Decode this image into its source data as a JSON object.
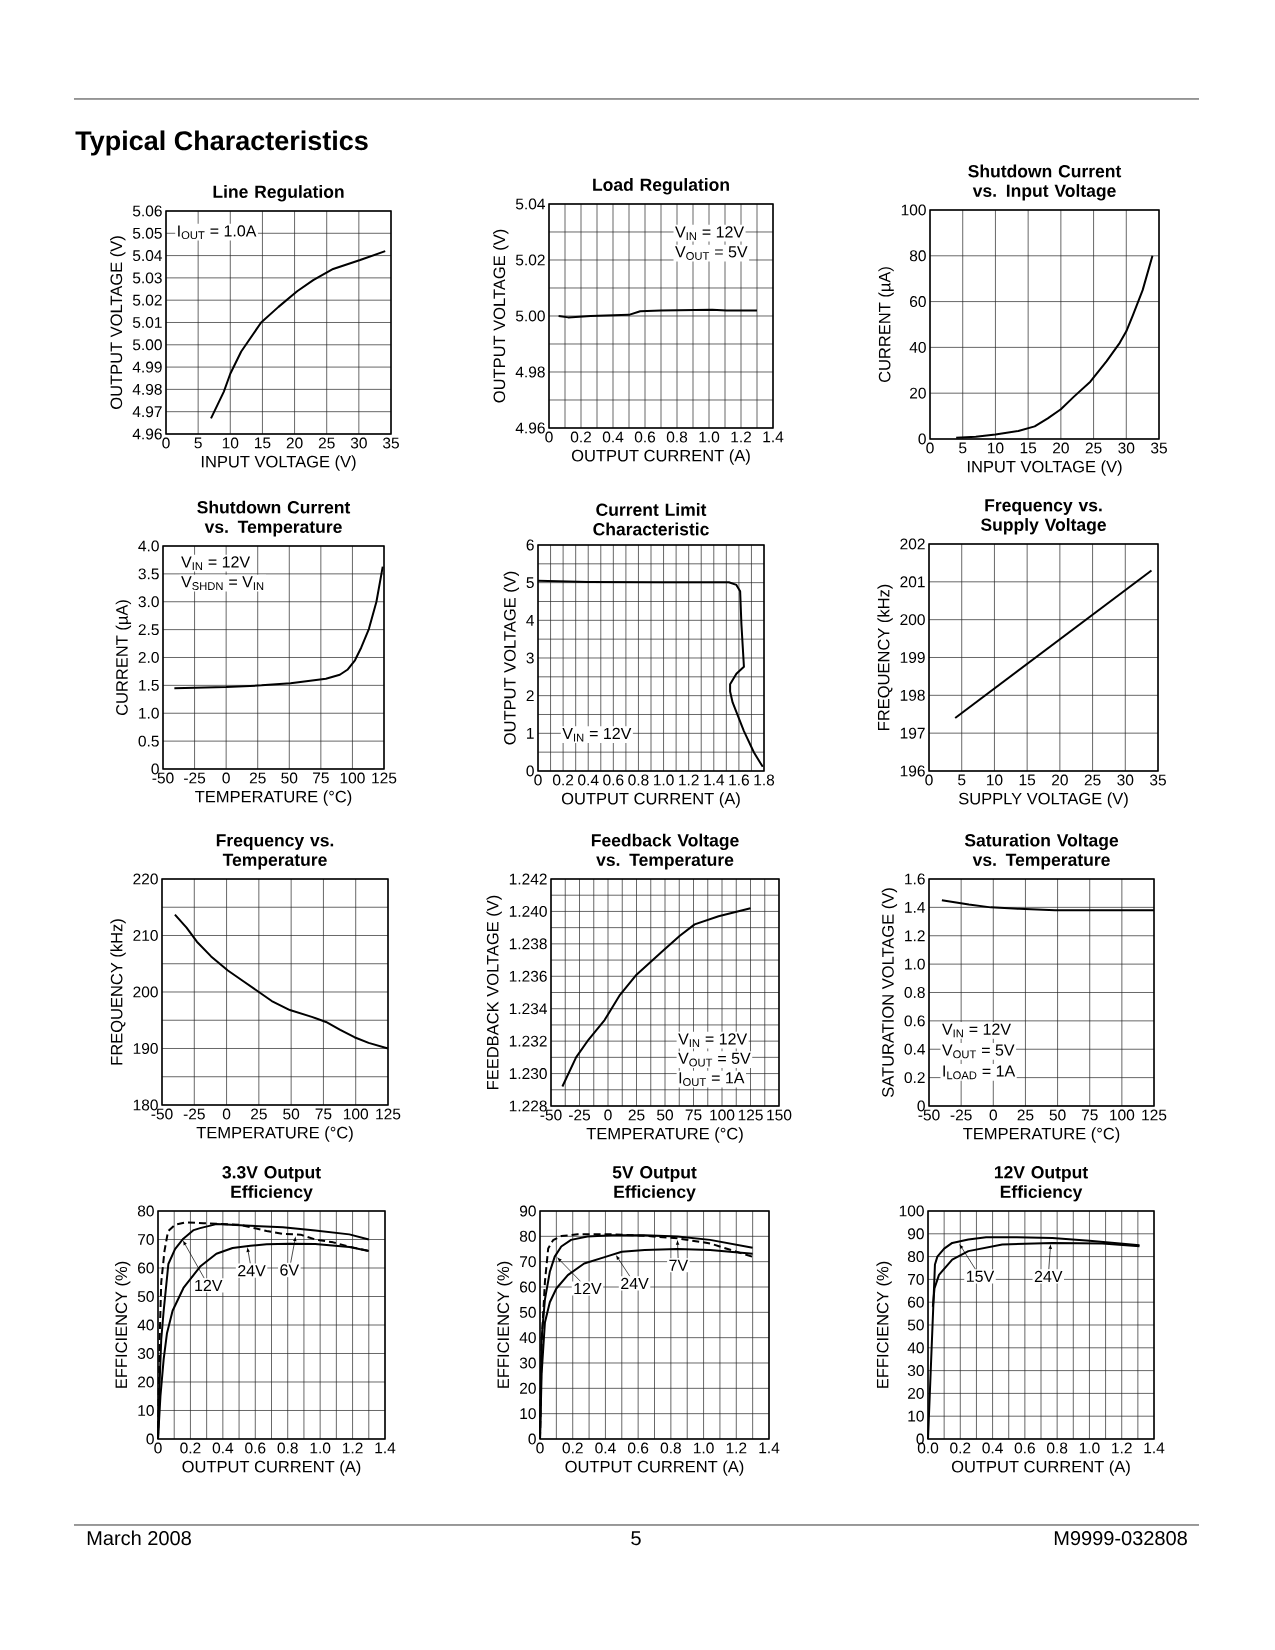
{
  "chart_data": [
    {
      "type": "other",
      "title": "Typical Characteristics",
      "annotations": [
        "March 2008",
        "5",
        "M9999-032808"
      ]
    },
    {
      "type": "line",
      "title": "Line Regulation",
      "xlabel": "INPUT VOLTAGE (V)",
      "ylabel": "OUTPUT VOLTAGE (V)",
      "xlim": [
        0,
        35
      ],
      "ylim": [
        4.96,
        5.06
      ],
      "xticks": [
        0,
        5,
        10,
        15,
        20,
        25,
        30,
        35
      ],
      "yticks": [
        4.96,
        4.97,
        4.98,
        4.99,
        {
          "value": 5,
          "label": "5.00"
        },
        5.01,
        5.02,
        5.03,
        5.04,
        5.05,
        5.06
      ],
      "grid": true,
      "annotations": [
        "I$_{OUT}$ = 1.0A"
      ],
      "series": [
        {
          "color": "#000000",
          "x": [
            7,
            9,
            10,
            11.7,
            14.8,
            17.5,
            20.4,
            22.9,
            26,
            30.2,
            34.1
          ],
          "values": [
            4.967,
            4.979,
            4.987,
            4.997,
            5.01,
            5.017,
            5.024,
            5.029,
            5.034,
            5.038,
            5.042
          ]
        }
      ]
    },
    {
      "type": "line",
      "title": "Load Regulation",
      "xlabel": "OUTPUT CURRENT (A)",
      "ylabel": "OUTPUT VOLTAGE (V)",
      "xlim": [
        0,
        1.4
      ],
      "ylim": [
        4.96,
        5.04
      ],
      "xticks": [
        0,
        {
          "value": 0.1,
          "label": null
        },
        0.2,
        {
          "value": 0.3,
          "label": null
        },
        0.4,
        {
          "value": 0.5,
          "label": null
        },
        0.6,
        {
          "value": 0.7,
          "label": null
        },
        0.8,
        {
          "value": 0.9,
          "label": null
        },
        {
          "value": 1,
          "label": "1.0"
        },
        {
          "value": 1.1,
          "label": null
        },
        1.2,
        {
          "value": 1.3,
          "label": null
        },
        1.4
      ],
      "yticks": [
        4.96,
        {
          "value": 4.97,
          "label": null
        },
        4.98,
        {
          "value": 4.99,
          "label": null
        },
        {
          "value": 5,
          "label": "5.00"
        },
        {
          "value": 5.01,
          "label": null
        },
        5.02,
        {
          "value": 5.03,
          "label": null
        },
        5.04
      ],
      "grid": true,
      "annotations": [
        "V$_{IN}$ = 12V",
        "V$_{OUT}$ = 5V"
      ],
      "series": [
        {
          "color": "#000000",
          "x": [
            0.06,
            0.12,
            0.26,
            0.5,
            0.57,
            0.7,
            1.02,
            1.11,
            1.3
          ],
          "values": [
            5.0,
            4.9995,
            5.0,
            5.0004,
            5.0017,
            5.002,
            5.0022,
            5.002,
            5.002
          ]
        }
      ]
    },
    {
      "type": "line",
      "title": "Shutdown Current vs. Input Voltage",
      "xlabel": "INPUT VOLTAGE (V)",
      "ylabel": "CURRENT (µA)",
      "xlim": [
        0,
        35
      ],
      "ylim": [
        0,
        100
      ],
      "xticks": [
        0,
        5,
        10,
        15,
        20,
        25,
        30,
        35
      ],
      "yticks": [
        0,
        20,
        40,
        60,
        80,
        100
      ],
      "grid": true,
      "series": [
        {
          "color": "#000000",
          "x": [
            4,
            7,
            10,
            13.5,
            16,
            18,
            20,
            22,
            24.5,
            27,
            29,
            30,
            31,
            32.5,
            34
          ],
          "values": [
            0.5,
            1,
            2,
            3.5,
            5.5,
            9,
            13,
            18.5,
            25,
            34,
            42,
            47,
            54,
            65,
            80
          ]
        }
      ]
    },
    {
      "type": "line",
      "title": "Shutdown Current vs. Temperature",
      "xlabel": "TEMPERATURE (°C)",
      "ylabel": "CURRENT (µA)",
      "xlim": [
        -50,
        125
      ],
      "ylim": [
        0,
        4
      ],
      "xticks": [
        -50,
        -25,
        0,
        25,
        50,
        75,
        100,
        125
      ],
      "yticks": [
        0,
        0.5,
        {
          "value": 1,
          "label": "1.0"
        },
        1.5,
        {
          "value": 2,
          "label": "2.0"
        },
        2.5,
        {
          "value": 3,
          "label": "3.0"
        },
        3.5,
        {
          "value": 4,
          "label": "4.0"
        }
      ],
      "grid": true,
      "annotations": [
        "V$_{IN}$ = 12V",
        "V$_{SHDN}$ = V$_{IN}$"
      ],
      "series": [
        {
          "color": "#000000",
          "x": [
            -41,
            0,
            28,
            51,
            79,
            90,
            96,
            102,
            107,
            113,
            119,
            124
          ],
          "values": [
            1.45,
            1.47,
            1.5,
            1.54,
            1.62,
            1.69,
            1.78,
            1.95,
            2.18,
            2.51,
            3.0,
            3.63
          ]
        }
      ]
    },
    {
      "type": "line",
      "title": "Current Limit Characteristic",
      "xlabel": "OUTPUT CURRENT (A)",
      "ylabel": "OUTPUT VOLTAGE (V)",
      "xlim": [
        0,
        1.8
      ],
      "ylim": [
        0,
        6
      ],
      "xticks": [
        0,
        {
          "value": 0.1,
          "label": null
        },
        0.2,
        {
          "value": 0.3,
          "label": null
        },
        0.4,
        {
          "value": 0.5,
          "label": null
        },
        0.6,
        {
          "value": 0.7,
          "label": null
        },
        0.8,
        {
          "value": 0.9,
          "label": null
        },
        {
          "value": 1,
          "label": "1.0"
        },
        {
          "value": 1.1,
          "label": null
        },
        1.2,
        {
          "value": 1.3,
          "label": null
        },
        1.4,
        {
          "value": 1.5,
          "label": null
        },
        1.6,
        {
          "value": 1.7,
          "label": null
        },
        1.8
      ],
      "yticks": [
        0,
        {
          "value": 0.5,
          "label": null
        },
        1,
        {
          "value": 1.5,
          "label": null
        },
        2,
        {
          "value": 2.5,
          "label": null
        },
        3,
        {
          "value": 3.5,
          "label": null
        },
        4,
        {
          "value": 4.5,
          "label": null
        },
        5,
        {
          "value": 5.5,
          "label": null
        },
        6
      ],
      "grid": true,
      "annotations": [
        "V$_{IN}$ = 12V"
      ],
      "series": [
        {
          "color": "#000000",
          "x": [
            0,
            0.4,
            1.0,
            1.52,
            1.58,
            1.61,
            1.62,
            1.64,
            1.58,
            1.53,
            1.53,
            1.55,
            1.64,
            1.72,
            1.79
          ],
          "values": [
            5.05,
            5.02,
            5.01,
            5.01,
            4.94,
            4.77,
            3.9,
            2.77,
            2.58,
            2.3,
            2.11,
            1.82,
            1.06,
            0.49,
            0.11
          ]
        }
      ]
    },
    {
      "type": "line",
      "title": "Frequency vs. Supply Voltage",
      "xlabel": "SUPPLY VOLTAGE (V)",
      "ylabel": "FREQUENCY (kHz)",
      "xlim": [
        0,
        35
      ],
      "ylim": [
        196,
        202
      ],
      "xticks": [
        0,
        5,
        10,
        15,
        20,
        25,
        30,
        35
      ],
      "yticks": [
        196,
        197,
        198,
        199,
        200,
        201,
        202
      ],
      "grid": true,
      "series": [
        {
          "color": "#000000",
          "x": [
            4,
            19,
            34
          ],
          "values": [
            197.4,
            199.35,
            201.3
          ]
        }
      ]
    },
    {
      "type": "line",
      "title": "Frequency vs. Temperature",
      "xlabel": "TEMPERATURE (°C)",
      "ylabel": "FREQUENCY (kHz)",
      "xlim": [
        -50,
        125
      ],
      "ylim": [
        180,
        220
      ],
      "xticks": [
        -50,
        -25,
        0,
        25,
        50,
        75,
        100,
        125
      ],
      "yticks": [
        180,
        {
          "value": 185,
          "label": null
        },
        190,
        {
          "value": 195,
          "label": null
        },
        200,
        {
          "value": 205,
          "label": null
        },
        210,
        {
          "value": 215,
          "label": null
        },
        220
      ],
      "grid": true,
      "series": [
        {
          "color": "#000000",
          "x": [
            -40,
            -31,
            -23,
            -12,
            1,
            13,
            25,
            35,
            49,
            66,
            77,
            88,
            99,
            110,
            125
          ],
          "values": [
            213.7,
            211.4,
            208.9,
            206.3,
            203.8,
            201.9,
            200,
            198.4,
            196.8,
            195.6,
            194.7,
            193.3,
            192,
            191,
            190
          ]
        }
      ]
    },
    {
      "type": "line",
      "title": "Feedback Voltage vs. Temperature",
      "xlabel": "TEMPERATURE (°C)",
      "ylabel": "FEEDBACK VOLTAGE (V)",
      "xlim": [
        -50,
        150
      ],
      "ylim": [
        1.228,
        1.242
      ],
      "xticks": [
        -50,
        {
          "value": -37.5,
          "label": null
        },
        -25,
        {
          "value": -12.5,
          "label": null
        },
        0,
        {
          "value": 12.5,
          "label": null
        },
        25,
        {
          "value": 37.5,
          "label": null
        },
        50,
        {
          "value": 62.5,
          "label": null
        },
        75,
        {
          "value": 87.5,
          "label": null
        },
        100,
        {
          "value": 112.5,
          "label": null
        },
        125,
        {
          "value": 137.5,
          "label": null
        },
        150
      ],
      "yticks": [
        1.228,
        {
          "value": 1.229,
          "label": null
        },
        {
          "value": 1.23,
          "label": "1.230"
        },
        {
          "value": 1.231,
          "label": null
        },
        1.232,
        {
          "value": 1.233,
          "label": null
        },
        1.234,
        {
          "value": 1.235,
          "label": null
        },
        1.236,
        {
          "value": 1.237,
          "label": null
        },
        1.238,
        {
          "value": 1.239,
          "label": null
        },
        {
          "value": 1.24,
          "label": "1.240"
        },
        {
          "value": 1.241,
          "label": null
        },
        1.242
      ],
      "grid": true,
      "annotations": [
        "V$_{IN}$ = 12V",
        "V$_{OUT}$ = 5V",
        "I$_{OUT}$ = 1A"
      ],
      "series": [
        {
          "color": "#000000",
          "x": [
            -40,
            -28,
            -17,
            -3,
            10,
            25,
            47,
            63,
            76,
            97,
            125
          ],
          "values": [
            1.2292,
            1.231,
            1.2321,
            1.2333,
            1.2348,
            1.2361,
            1.2375,
            1.2385,
            1.2392,
            1.2397,
            1.2402
          ]
        }
      ]
    },
    {
      "type": "line",
      "title": "Saturation Voltage vs. Temperature",
      "xlabel": "TEMPERATURE (°C)",
      "ylabel": "SATURATION VOLTAGE (V)",
      "xlim": [
        -50,
        125
      ],
      "ylim": [
        0,
        1.6
      ],
      "xticks": [
        -50,
        -25,
        0,
        25,
        50,
        75,
        100,
        125
      ],
      "yticks": [
        0,
        0.2,
        0.4,
        0.6,
        0.8,
        {
          "value": 1,
          "label": "1.0"
        },
        1.2,
        1.4,
        1.6
      ],
      "grid": true,
      "annotations": [
        "V$_{IN}$ = 12V",
        "V$_{OUT}$ = 5V",
        "I$_{LOAD}$ = 1A"
      ],
      "series": [
        {
          "color": "#000000",
          "x": [
            -40,
            -19,
            -2,
            20,
            48,
            76,
            125
          ],
          "values": [
            1.45,
            1.42,
            1.4,
            1.39,
            1.38,
            1.38,
            1.38
          ]
        }
      ]
    },
    {
      "type": "line",
      "title": "3.3V Output Efficiency",
      "xlabel": "OUTPUT CURRENT (A)",
      "ylabel": "EFFICIENCY (%)",
      "xlim": [
        0,
        1.4
      ],
      "ylim": [
        0,
        80
      ],
      "xticks": [
        0,
        {
          "value": 0.1,
          "label": null
        },
        0.2,
        {
          "value": 0.3,
          "label": null
        },
        0.4,
        {
          "value": 0.5,
          "label": null
        },
        0.6,
        {
          "value": 0.7,
          "label": null
        },
        0.8,
        {
          "value": 0.9,
          "label": null
        },
        {
          "value": 1,
          "label": "1.0"
        },
        {
          "value": 1.1,
          "label": null
        },
        1.2,
        {
          "value": 1.3,
          "label": null
        },
        1.4
      ],
      "yticks": [
        0,
        10,
        20,
        30,
        40,
        50,
        60,
        70,
        80
      ],
      "grid": true,
      "annotations": [
        {
          "text": "12V",
          "x": 0.15,
          "y": 70
        },
        {
          "text": "24V",
          "x": 0.55,
          "y": 67.7
        },
        {
          "text": "6V",
          "x": 0.85,
          "y": 71.5
        }
      ],
      "series": [
        {
          "color": "#000000",
          "line_style": "solid",
          "x": [
            0,
            0.01,
            0.02,
            0.035,
            0.064,
            0.105,
            0.156,
            0.22,
            0.26,
            0.36,
            0.57,
            0.77,
            0.97,
            1.18,
            1.3
          ],
          "values": [
            0,
            20,
            35,
            45,
            61.4,
            66.6,
            70.3,
            73.3,
            74,
            75.4,
            74.8,
            74.3,
            73.2,
            71.8,
            70
          ]
        },
        {
          "color": "#000000",
          "line_style": "solid",
          "x": [
            0,
            0.015,
            0.035,
            0.055,
            0.09,
            0.157,
            0.26,
            0.36,
            0.46,
            0.57,
            0.67,
            0.81,
            0.97,
            1.18,
            1.3
          ],
          "values": [
            0,
            15,
            28,
            37,
            45,
            53,
            60.5,
            65,
            67,
            67.8,
            68.3,
            68.5,
            68.4,
            67.4,
            66
          ]
        },
        {
          "color": "#000000",
          "line_style": "dashed",
          "x": [
            0,
            0.01,
            0.02,
            0.04,
            0.062,
            0.106,
            0.172,
            0.28,
            0.36,
            0.5,
            0.67,
            0.77,
            0.88,
            0.97,
            1.08,
            1.18,
            1.3
          ],
          "values": [
            0,
            35,
            55,
            66,
            72.9,
            75.2,
            76,
            75.7,
            75.5,
            75.2,
            73,
            72,
            71.7,
            70,
            69,
            67.5,
            66
          ]
        }
      ]
    },
    {
      "type": "line",
      "title": "5V Output Efficiency",
      "xlabel": "OUTPUT CURRENT (A)",
      "ylabel": "EFFICIENCY (%)",
      "xlim": [
        0,
        1.4
      ],
      "ylim": [
        0,
        90
      ],
      "xticks": [
        0,
        {
          "value": 0.1,
          "label": null
        },
        0.2,
        {
          "value": 0.3,
          "label": null
        },
        0.4,
        {
          "value": 0.5,
          "label": null
        },
        0.6,
        {
          "value": 0.7,
          "label": null
        },
        0.8,
        {
          "value": 0.9,
          "label": null
        },
        {
          "value": 1,
          "label": "1.0"
        },
        {
          "value": 1.1,
          "label": null
        },
        1.2,
        {
          "value": 1.3,
          "label": null
        },
        1.4
      ],
      "yticks": [
        0,
        10,
        20,
        30,
        40,
        50,
        60,
        70,
        80,
        90
      ],
      "grid": true,
      "annotations": [
        {
          "text": "12V",
          "x": 0.1,
          "y": 72
        },
        {
          "text": "24V",
          "x": 0.46,
          "y": 73
        },
        {
          "text": "7V",
          "x": 0.84,
          "y": 79
        }
      ],
      "series": [
        {
          "color": "#000000",
          "line_style": "solid",
          "x": [
            0,
            0.01,
            0.03,
            0.06,
            0.09,
            0.13,
            0.19,
            0.29,
            0.44,
            0.64,
            0.84,
            1.04,
            1.3
          ],
          "values": [
            0,
            40,
            55,
            66,
            72,
            76,
            78.6,
            79.9,
            80.4,
            80.4,
            79.9,
            78.6,
            75.5
          ]
        },
        {
          "color": "#000000",
          "line_style": "solid",
          "x": [
            0,
            0.01,
            0.03,
            0.06,
            0.1,
            0.17,
            0.27,
            0.4,
            0.5,
            0.64,
            0.84,
            1.04,
            1.3
          ],
          "values": [
            0,
            26,
            46,
            54,
            59.4,
            64.7,
            69.3,
            71.9,
            73.9,
            74.6,
            75,
            74.6,
            73.1
          ]
        },
        {
          "color": "#000000",
          "line_style": "dashed",
          "x": [
            0,
            0.01,
            0.03,
            0.05,
            0.08,
            0.13,
            0.23,
            0.44,
            0.64,
            0.84,
            1.04,
            1.3
          ],
          "values": [
            0,
            38,
            62,
            75.2,
            78.5,
            80.1,
            80.8,
            80.8,
            80.2,
            79.2,
            77.2,
            71.9
          ]
        }
      ]
    },
    {
      "type": "line",
      "title": "12V Output Efficiency",
      "xlabel": "OUTPUT CURRENT (A)",
      "ylabel": "EFFICIENCY (%)",
      "xlim": [
        0,
        1.4
      ],
      "ylim": [
        0,
        100
      ],
      "xticks": [
        {
          "value": 0,
          "label": "0.0"
        },
        {
          "value": 0.1,
          "label": null
        },
        0.2,
        {
          "value": 0.3,
          "label": null
        },
        0.4,
        {
          "value": 0.5,
          "label": null
        },
        0.6,
        {
          "value": 0.7,
          "label": null
        },
        0.8,
        {
          "value": 0.9,
          "label": null
        },
        {
          "value": 1,
          "label": "1.0"
        },
        {
          "value": 1.1,
          "label": null
        },
        1.2,
        {
          "value": 1.3,
          "label": null
        },
        1.4
      ],
      "yticks": [
        0,
        10,
        20,
        30,
        40,
        50,
        60,
        70,
        80,
        90,
        100
      ],
      "grid": true,
      "annotations": [
        {
          "text": "15V",
          "x": 0.19,
          "y": 86
        },
        {
          "text": "24V",
          "x": 0.76,
          "y": 86
        }
      ],
      "series": [
        {
          "color": "#000000",
          "line_style": "solid",
          "x": [
            0,
            0.043,
            0.058,
            0.1,
            0.15,
            0.25,
            0.36,
            0.55,
            0.77,
            1.0,
            1.31
          ],
          "values": [
            0,
            76.5,
            80,
            83.5,
            86,
            87.5,
            88.5,
            88.5,
            88.2,
            87,
            85
          ]
        },
        {
          "color": "#000000",
          "line_style": "solid",
          "x": [
            0.03,
            0.04,
            0.068,
            0.15,
            0.25,
            0.46,
            0.77,
            1.08,
            1.31
          ],
          "values": [
            58,
            66,
            72,
            78.7,
            82.4,
            85.3,
            86,
            85.7,
            84.5
          ]
        }
      ]
    }
  ]
}
